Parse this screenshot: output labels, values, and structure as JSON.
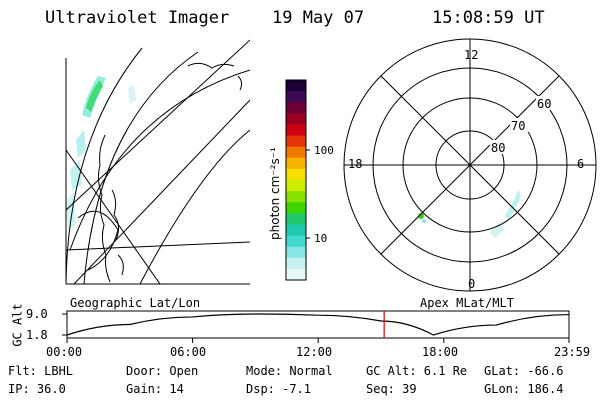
{
  "header": {
    "instrument": "Ultraviolet Imager",
    "date": "19 May 07",
    "time": "15:08:59 UT"
  },
  "colorbar": {
    "unit_label": "photon cm⁻²s⁻¹",
    "ticks": [
      "100",
      "10"
    ],
    "colors": [
      "#1a0033",
      "#3d0a55",
      "#6a0033",
      "#990022",
      "#cc0011",
      "#e6330a",
      "#f07a00",
      "#f7b500",
      "#f5e000",
      "#ccef00",
      "#88e200",
      "#3fd400",
      "#1fc86a",
      "#20c8b0",
      "#40d8d0",
      "#88e6e6",
      "#c8f0f0",
      "#e8f8f8"
    ]
  },
  "polar": {
    "hour_labels": [
      "12",
      "18",
      "6",
      "0"
    ],
    "lat_labels": [
      "60",
      "70",
      "80"
    ]
  },
  "map": {
    "left_caption": "Geographic Lat/Lon",
    "right_caption": "Apex MLat/MLT"
  },
  "altitude_plot": {
    "ylabel": "GC Alt",
    "y_ticks": [
      "9.0",
      "1.8"
    ],
    "x_ticks": [
      "00:00",
      "06:00",
      "12:00",
      "18:00",
      "23:59"
    ],
    "current_time_hours": 15.15,
    "altitude_profile": [
      [
        0,
        1.8
      ],
      [
        3,
        5.4
      ],
      [
        6,
        8.0
      ],
      [
        9,
        9.0
      ],
      [
        12,
        8.6
      ],
      [
        15,
        6.6
      ],
      [
        17.5,
        1.8
      ],
      [
        20.5,
        5.2
      ],
      [
        23.98,
        8.8
      ]
    ],
    "y_range": [
      1.8,
      9.0
    ],
    "x_range": [
      0,
      23.98
    ],
    "marker_color": "#dd0000"
  },
  "info": {
    "flt": "Flt: LBHL",
    "door": "Door: Open",
    "mode": "Mode: Normal",
    "gc_alt": "GC Alt: 6.1 Re",
    "glat": "GLat: -66.6",
    "ip": "IP: 36.0",
    "gain": "Gain: 14",
    "dsp": "Dsp:   -7.1",
    "seq": "Seq: 39",
    "glon": "GLon: 186.4"
  }
}
